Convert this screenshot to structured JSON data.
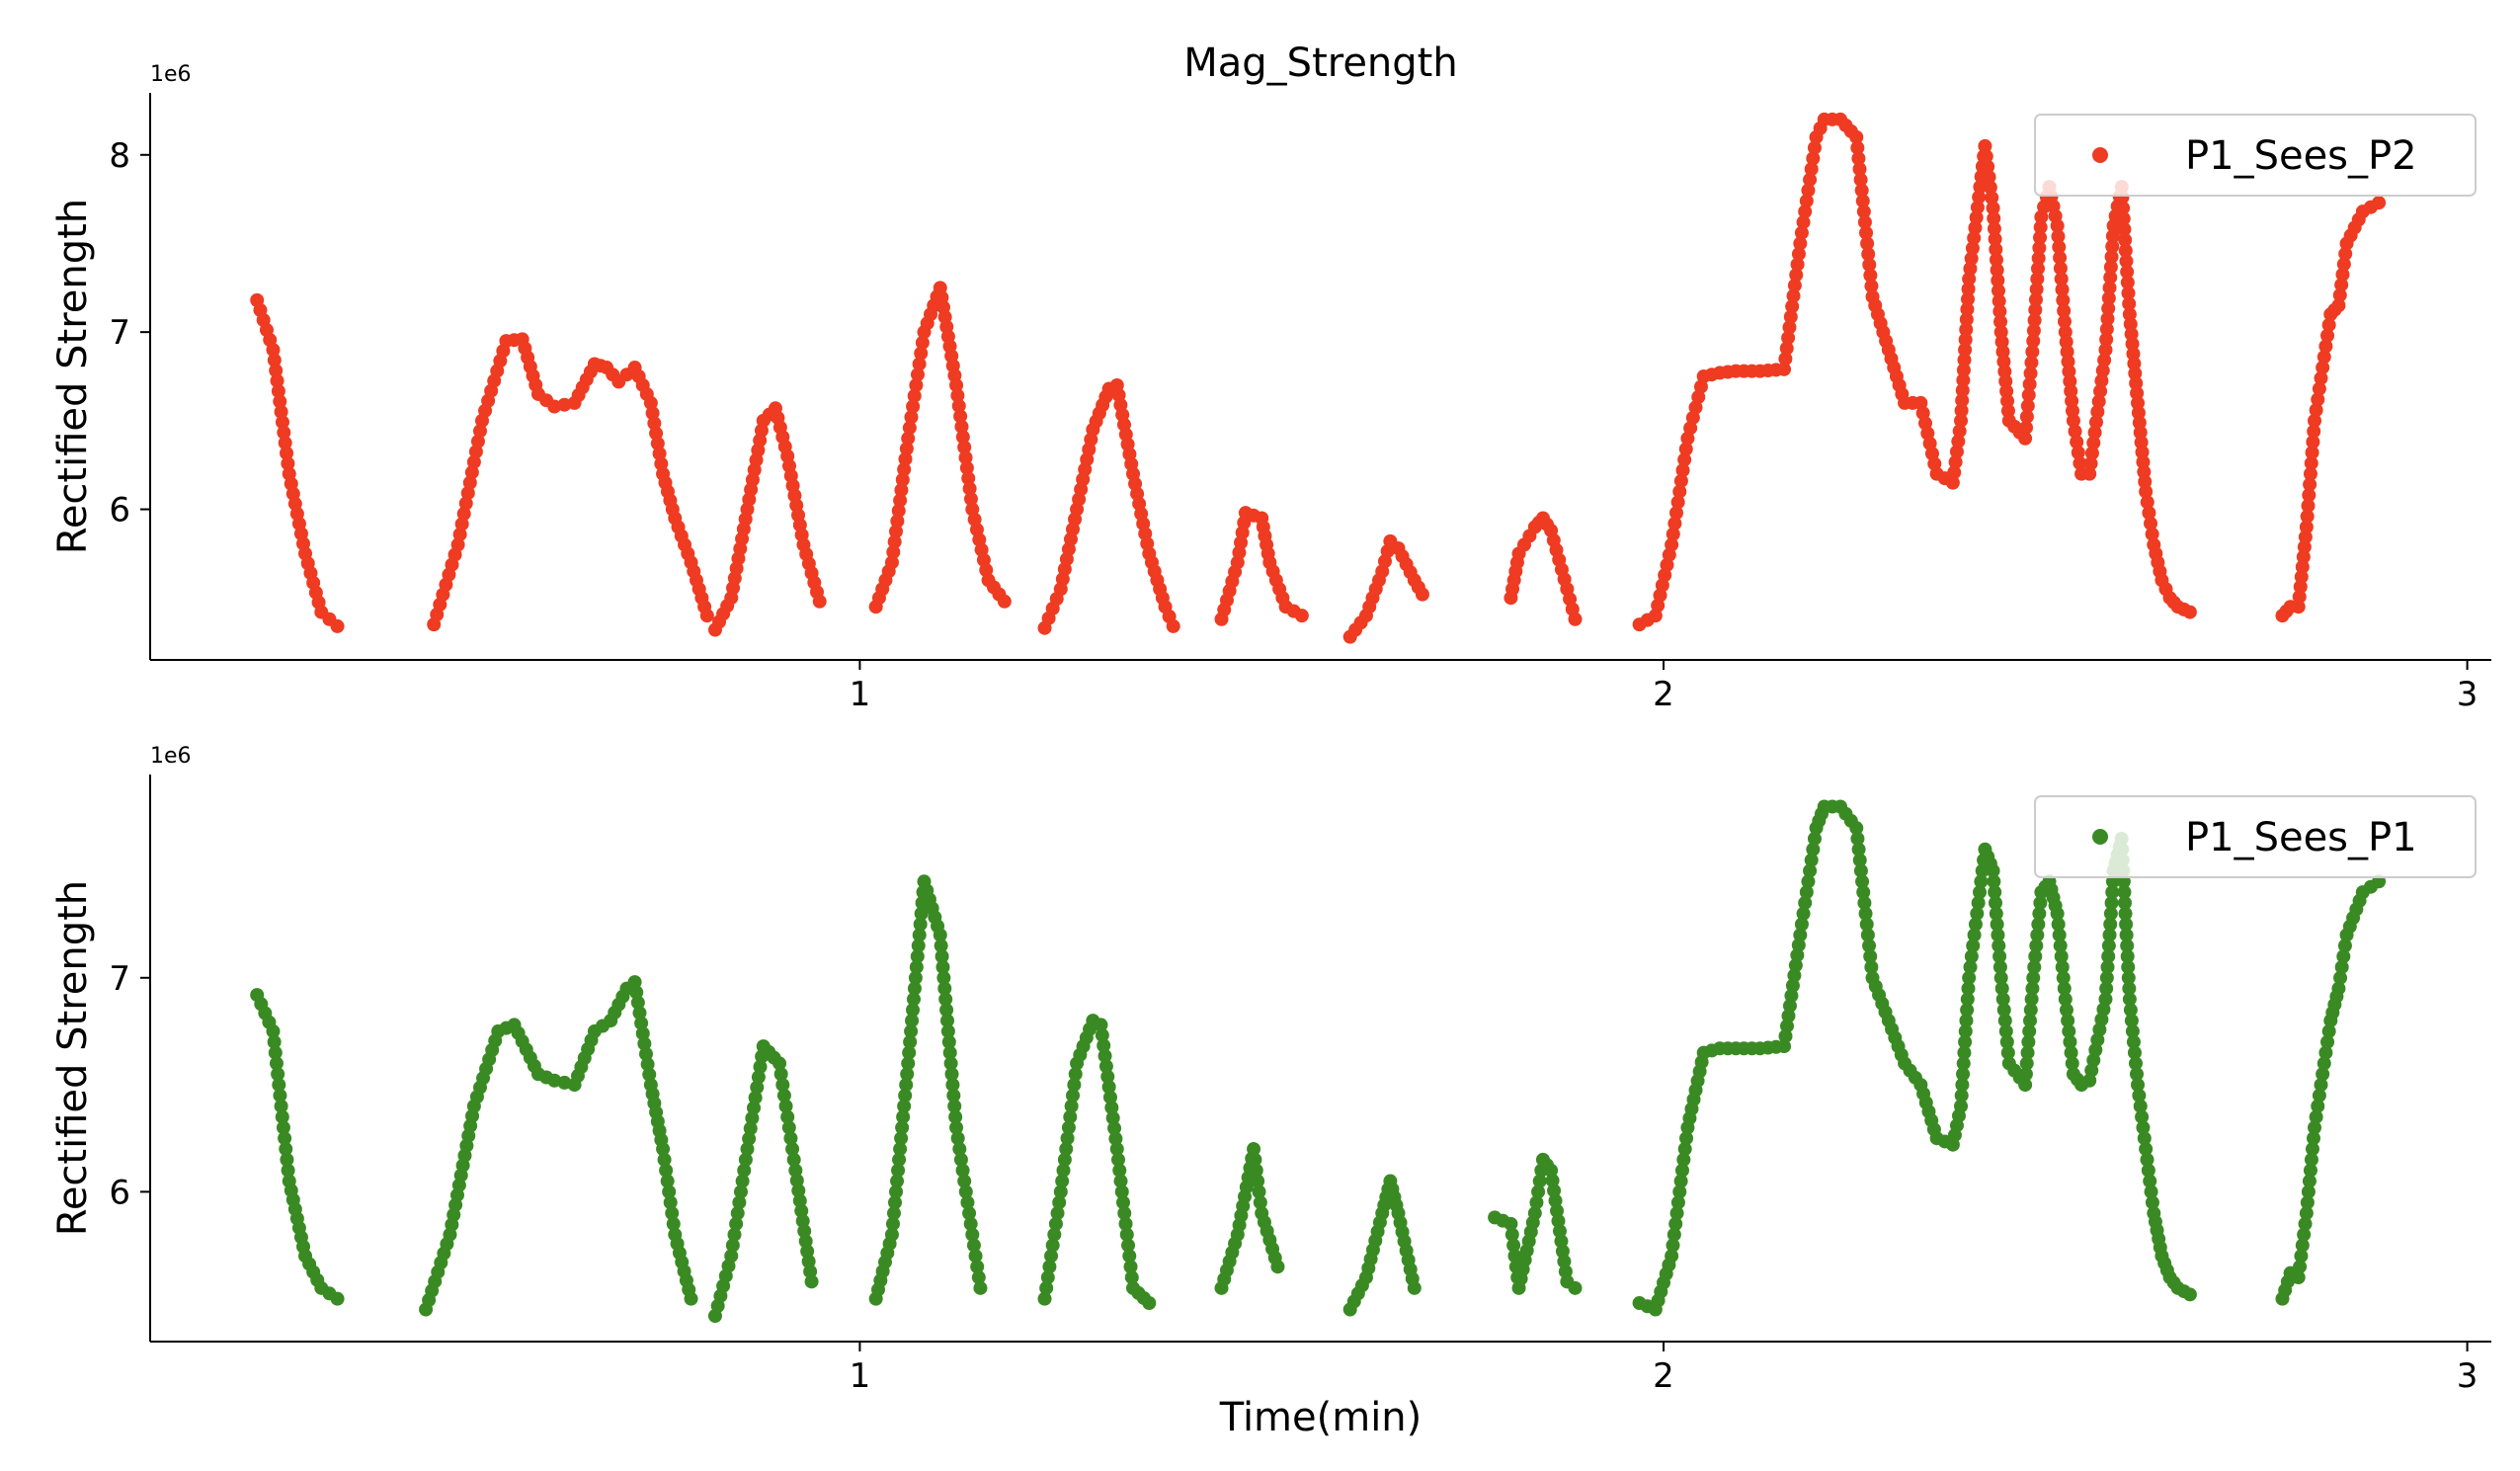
{
  "figure": {
    "title": "Mag_Strength",
    "xlabel": "Time(min)"
  },
  "chart_data": [
    {
      "type": "scatter",
      "title": "Mag_Strength",
      "xlabel": "",
      "ylabel": "Rectified Strength",
      "y_offset_label": "1e6",
      "xlim": [
        0.117,
        3.03
      ],
      "ylim": [
        5.15,
        8.35
      ],
      "x_ticks": [
        1,
        2,
        3
      ],
      "x_tick_labels": [
        "1",
        "2",
        "3"
      ],
      "y_ticks": [
        6,
        7,
        8
      ],
      "y_tick_labels": [
        "6",
        "7",
        "8"
      ],
      "legend": "top-right",
      "series": [
        {
          "name": "P1_Sees_P2",
          "color": "#ee3b22",
          "segments": [
            {
              "x": [
                0.25,
                0.27,
                0.29,
                0.31,
                0.33,
                0.35
              ],
              "y": [
                7.18,
                6.9,
                6.2,
                5.75,
                5.42,
                5.34
              ]
            },
            {
              "x": [
                0.47,
                0.5,
                0.53,
                0.56,
                0.58,
                0.6,
                0.62,
                0.645,
                0.67,
                0.685,
                0.7,
                0.72,
                0.74,
                0.755,
                0.77,
                0.79,
                0.81
              ],
              "y": [
                5.35,
                5.8,
                6.5,
                6.95,
                6.96,
                6.65,
                6.58,
                6.6,
                6.82,
                6.8,
                6.72,
                6.8,
                6.6,
                6.2,
                5.95,
                5.7,
                5.4
              ]
            },
            {
              "x": [
                0.82,
                0.84,
                0.86,
                0.88,
                0.895,
                0.91,
                0.93,
                0.95
              ],
              "y": [
                5.32,
                5.5,
                6.0,
                6.5,
                6.57,
                6.3,
                5.8,
                5.48
              ]
            },
            {
              "x": [
                1.02,
                1.04,
                1.06,
                1.08,
                1.1,
                1.12,
                1.14,
                1.16,
                1.18
              ],
              "y": [
                5.45,
                5.7,
                6.4,
                7.0,
                7.25,
                6.7,
                6.0,
                5.6,
                5.48
              ]
            },
            {
              "x": [
                1.23,
                1.25,
                1.27,
                1.29,
                1.31,
                1.32,
                1.34,
                1.36,
                1.38,
                1.39
              ],
              "y": [
                5.33,
                5.55,
                6.0,
                6.45,
                6.68,
                6.7,
                6.2,
                5.75,
                5.45,
                5.34
              ]
            },
            {
              "x": [
                1.45,
                1.47,
                1.48,
                1.5,
                1.51,
                1.53,
                1.55
              ],
              "y": [
                5.38,
                5.7,
                5.98,
                5.95,
                5.7,
                5.45,
                5.4
              ]
            },
            {
              "x": [
                1.61,
                1.63,
                1.65,
                1.66,
                1.67,
                1.69,
                1.7
              ],
              "y": [
                5.28,
                5.4,
                5.65,
                5.82,
                5.78,
                5.6,
                5.52
              ]
            },
            {
              "x": [
                1.81,
                1.82,
                1.84,
                1.85,
                1.86,
                1.88,
                1.89
              ],
              "y": [
                5.5,
                5.75,
                5.9,
                5.95,
                5.88,
                5.55,
                5.38
              ]
            },
            {
              "x": [
                1.97,
                1.99,
                2.01,
                2.03,
                2.05,
                2.07,
                2.09,
                2.12,
                2.15,
                2.17,
                2.19,
                2.2,
                2.22,
                2.24,
                2.26,
                2.28,
                2.3,
                2.32,
                2.34,
                2.36,
                2.37,
                2.38,
                2.4,
                2.41,
                2.42,
                2.43,
                2.45,
                2.46,
                2.47,
                2.48,
                2.49,
                2.5,
                2.51,
                2.52,
                2.53,
                2.55,
                2.56,
                2.57,
                2.58,
                2.59,
                2.6,
                2.61,
                2.62,
                2.63,
                2.64,
                2.655
              ],
              "y": [
                5.35,
                5.4,
                5.8,
                6.4,
                6.75,
                6.77,
                6.78,
                6.78,
                6.79,
                7.5,
                8.1,
                8.2,
                8.2,
                8.1,
                7.2,
                6.9,
                6.6,
                6.6,
                6.2,
                6.15,
                6.5,
                7.3,
                8.05,
                7.7,
                7.0,
                6.5,
                6.4,
                6.95,
                7.65,
                7.82,
                7.6,
                7.0,
                6.5,
                6.2,
                6.2,
                6.9,
                7.6,
                7.82,
                7.1,
                6.6,
                6.1,
                5.8,
                5.6,
                5.5,
                5.45,
                5.42
              ]
            },
            {
              "x": [
                2.77,
                2.78,
                2.79,
                2.8,
                2.81,
                2.83,
                2.84,
                2.85,
                2.87,
                2.89
              ],
              "y": [
                5.4,
                5.45,
                5.45,
                5.9,
                6.5,
                7.1,
                7.15,
                7.5,
                7.68,
                7.73
              ]
            }
          ]
        }
      ]
    },
    {
      "type": "scatter",
      "title": "",
      "xlabel": "Time(min)",
      "ylabel": "Rectified Strength",
      "y_offset_label": "1e6",
      "xlim": [
        0.117,
        3.03
      ],
      "ylim": [
        5.3,
        7.95
      ],
      "x_ticks": [
        1,
        2,
        3
      ],
      "x_tick_labels": [
        "1",
        "2",
        "3"
      ],
      "y_ticks": [
        6,
        7
      ],
      "y_tick_labels": [
        "6",
        "7"
      ],
      "legend": "top-right",
      "series": [
        {
          "name": "P1_Sees_P1",
          "color": "#3a8a24",
          "segments": [
            {
              "x": [
                0.25,
                0.27,
                0.29,
                0.31,
                0.33,
                0.35
              ],
              "y": [
                6.92,
                6.75,
                6.05,
                5.7,
                5.55,
                5.5
              ]
            },
            {
              "x": [
                0.46,
                0.49,
                0.52,
                0.55,
                0.57,
                0.6,
                0.62,
                0.645,
                0.67,
                0.69,
                0.71,
                0.72,
                0.74,
                0.755,
                0.77,
                0.79
              ],
              "y": [
                5.45,
                5.8,
                6.4,
                6.75,
                6.78,
                6.55,
                6.52,
                6.5,
                6.75,
                6.8,
                6.95,
                6.98,
                6.5,
                6.2,
                5.8,
                5.5
              ]
            },
            {
              "x": [
                0.82,
                0.84,
                0.86,
                0.88,
                0.9,
                0.92,
                0.94
              ],
              "y": [
                5.42,
                5.7,
                6.2,
                6.68,
                6.6,
                6.1,
                5.58
              ]
            },
            {
              "x": [
                1.02,
                1.04,
                1.06,
                1.08,
                1.1,
                1.12,
                1.14,
                1.15
              ],
              "y": [
                5.5,
                5.8,
                6.6,
                7.45,
                7.2,
                6.3,
                5.8,
                5.55
              ]
            },
            {
              "x": [
                1.23,
                1.25,
                1.27,
                1.29,
                1.3,
                1.32,
                1.34,
                1.36
              ],
              "y": [
                5.5,
                6.0,
                6.6,
                6.8,
                6.78,
                6.2,
                5.55,
                5.48
              ]
            },
            {
              "x": [
                1.45,
                1.47,
                1.49,
                1.5,
                1.52
              ],
              "y": [
                5.55,
                5.8,
                6.2,
                5.9,
                5.65
              ]
            },
            {
              "x": [
                1.61,
                1.63,
                1.65,
                1.66,
                1.67,
                1.69
              ],
              "y": [
                5.45,
                5.6,
                5.9,
                6.05,
                5.9,
                5.55
              ]
            },
            {
              "x": [
                1.79,
                1.81,
                1.82,
                1.84,
                1.85,
                1.86,
                1.88,
                1.89
              ],
              "y": [
                5.88,
                5.85,
                5.55,
                5.9,
                6.15,
                6.1,
                5.58,
                5.55
              ]
            },
            {
              "x": [
                1.97,
                1.99,
                2.01,
                2.03,
                2.05,
                2.07,
                2.09,
                2.12,
                2.15,
                2.17,
                2.19,
                2.2,
                2.22,
                2.24,
                2.26,
                2.28,
                2.3,
                2.32,
                2.34,
                2.36,
                2.37,
                2.38,
                2.4,
                2.41,
                2.42,
                2.43,
                2.45,
                2.46,
                2.47,
                2.48,
                2.49,
                2.5,
                2.51,
                2.52,
                2.53,
                2.55,
                2.56,
                2.57,
                2.58,
                2.59,
                2.6,
                2.61,
                2.62,
                2.63,
                2.64,
                2.655
              ],
              "y": [
                5.48,
                5.45,
                5.7,
                6.3,
                6.65,
                6.67,
                6.67,
                6.67,
                6.68,
                7.2,
                7.7,
                7.8,
                7.8,
                7.7,
                7.0,
                6.8,
                6.6,
                6.5,
                6.25,
                6.22,
                6.4,
                7.0,
                7.6,
                7.5,
                7.0,
                6.6,
                6.5,
                7.0,
                7.4,
                7.45,
                7.3,
                6.9,
                6.55,
                6.5,
                6.52,
                6.9,
                7.5,
                7.65,
                6.9,
                6.5,
                6.2,
                5.9,
                5.7,
                5.6,
                5.55,
                5.52
              ]
            },
            {
              "x": [
                2.77,
                2.78,
                2.79,
                2.8,
                2.81,
                2.83,
                2.84,
                2.85,
                2.87,
                2.89
              ],
              "y": [
                5.5,
                5.62,
                5.6,
                5.9,
                6.3,
                6.8,
                6.95,
                7.2,
                7.4,
                7.45
              ]
            }
          ]
        }
      ]
    }
  ]
}
